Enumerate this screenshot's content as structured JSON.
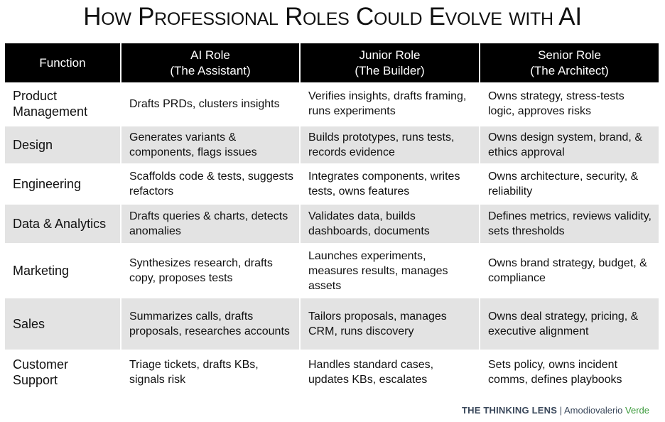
{
  "title": "How Professional Roles Could Evolve with AI",
  "table": {
    "headers": [
      {
        "line1": "Function",
        "line2": ""
      },
      {
        "line1": "AI Role",
        "line2": "(The Assistant)"
      },
      {
        "line1": "Junior Role",
        "line2": "(The Builder)"
      },
      {
        "line1": "Senior Role",
        "line2": "(The Architect)"
      }
    ],
    "rows": [
      {
        "function": "Product Management",
        "ai": "Drafts PRDs, clusters insights",
        "junior": "Verifies insights, drafts framing, runs experiments",
        "senior": "Owns strategy, stress-tests logic, approves risks"
      },
      {
        "function": "Design",
        "ai": "Generates variants & components, flags issues",
        "junior": "Builds prototypes, runs tests, records evidence",
        "senior": "Owns design system, brand, & ethics approval"
      },
      {
        "function": "Engineering",
        "ai": "Scaffolds code & tests, suggests refactors",
        "junior": "Integrates components, writes tests, owns features",
        "senior": "Owns architecture, security, & reliability"
      },
      {
        "function": "Data & Analytics",
        "ai": "Drafts queries & charts, detects anomalies",
        "junior": "Validates data, builds dashboards, documents",
        "senior": "Defines metrics, reviews validity, sets thresholds"
      },
      {
        "function": "Marketing",
        "ai": "Synthesizes research, drafts copy, proposes tests",
        "junior": "Launches experiments, measures results, manages assets",
        "senior": "Owns brand strategy, budget, & compliance"
      },
      {
        "function": "Sales",
        "ai": "Summarizes calls, drafts proposals, researches accounts",
        "junior": "Tailors proposals, manages CRM, runs discovery",
        "senior": "Owns deal strategy, pricing, & executive alignment"
      },
      {
        "function": "Customer Support",
        "ai": "Triage tickets, drafts KBs, signals risk",
        "junior": "Handles standard cases, updates KBs, escalates",
        "senior": "Sets policy, owns incident comms, defines playbooks"
      }
    ]
  },
  "footer": {
    "brand": "THE THINKING LENS",
    "separator": "|",
    "author": "Amodiovalerio",
    "author_accent": "Verde"
  },
  "colors": {
    "header_bg": "#000000",
    "stripe_bg": "#e3e3e3",
    "brand_text": "#39475a",
    "accent_green": "#3b9a3b"
  }
}
